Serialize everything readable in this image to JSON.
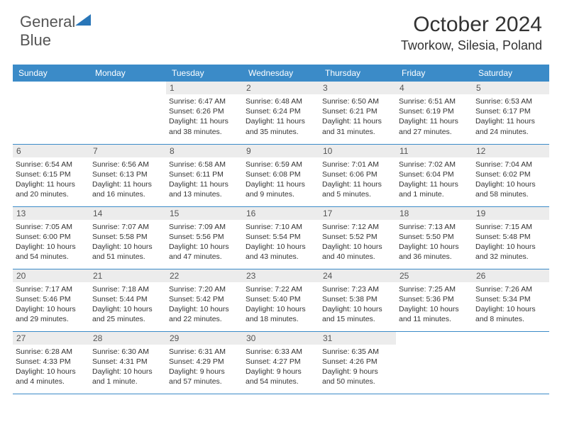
{
  "logo": {
    "text_general": "General",
    "text_blue": "Blue"
  },
  "title": "October 2024",
  "location": "Tworkow, Silesia, Poland",
  "colors": {
    "header_bg": "#3b8bc8",
    "header_text": "#ffffff",
    "daynum_bg": "#ececec",
    "text": "#333333",
    "row_border": "#3b8bc8",
    "logo_blue": "#2976b8"
  },
  "day_names": [
    "Sunday",
    "Monday",
    "Tuesday",
    "Wednesday",
    "Thursday",
    "Friday",
    "Saturday"
  ],
  "weeks": [
    [
      null,
      null,
      {
        "n": "1",
        "sr": "Sunrise: 6:47 AM",
        "ss": "Sunset: 6:26 PM",
        "d1": "Daylight: 11 hours",
        "d2": "and 38 minutes."
      },
      {
        "n": "2",
        "sr": "Sunrise: 6:48 AM",
        "ss": "Sunset: 6:24 PM",
        "d1": "Daylight: 11 hours",
        "d2": "and 35 minutes."
      },
      {
        "n": "3",
        "sr": "Sunrise: 6:50 AM",
        "ss": "Sunset: 6:21 PM",
        "d1": "Daylight: 11 hours",
        "d2": "and 31 minutes."
      },
      {
        "n": "4",
        "sr": "Sunrise: 6:51 AM",
        "ss": "Sunset: 6:19 PM",
        "d1": "Daylight: 11 hours",
        "d2": "and 27 minutes."
      },
      {
        "n": "5",
        "sr": "Sunrise: 6:53 AM",
        "ss": "Sunset: 6:17 PM",
        "d1": "Daylight: 11 hours",
        "d2": "and 24 minutes."
      }
    ],
    [
      {
        "n": "6",
        "sr": "Sunrise: 6:54 AM",
        "ss": "Sunset: 6:15 PM",
        "d1": "Daylight: 11 hours",
        "d2": "and 20 minutes."
      },
      {
        "n": "7",
        "sr": "Sunrise: 6:56 AM",
        "ss": "Sunset: 6:13 PM",
        "d1": "Daylight: 11 hours",
        "d2": "and 16 minutes."
      },
      {
        "n": "8",
        "sr": "Sunrise: 6:58 AM",
        "ss": "Sunset: 6:11 PM",
        "d1": "Daylight: 11 hours",
        "d2": "and 13 minutes."
      },
      {
        "n": "9",
        "sr": "Sunrise: 6:59 AM",
        "ss": "Sunset: 6:08 PM",
        "d1": "Daylight: 11 hours",
        "d2": "and 9 minutes."
      },
      {
        "n": "10",
        "sr": "Sunrise: 7:01 AM",
        "ss": "Sunset: 6:06 PM",
        "d1": "Daylight: 11 hours",
        "d2": "and 5 minutes."
      },
      {
        "n": "11",
        "sr": "Sunrise: 7:02 AM",
        "ss": "Sunset: 6:04 PM",
        "d1": "Daylight: 11 hours",
        "d2": "and 1 minute."
      },
      {
        "n": "12",
        "sr": "Sunrise: 7:04 AM",
        "ss": "Sunset: 6:02 PM",
        "d1": "Daylight: 10 hours",
        "d2": "and 58 minutes."
      }
    ],
    [
      {
        "n": "13",
        "sr": "Sunrise: 7:05 AM",
        "ss": "Sunset: 6:00 PM",
        "d1": "Daylight: 10 hours",
        "d2": "and 54 minutes."
      },
      {
        "n": "14",
        "sr": "Sunrise: 7:07 AM",
        "ss": "Sunset: 5:58 PM",
        "d1": "Daylight: 10 hours",
        "d2": "and 51 minutes."
      },
      {
        "n": "15",
        "sr": "Sunrise: 7:09 AM",
        "ss": "Sunset: 5:56 PM",
        "d1": "Daylight: 10 hours",
        "d2": "and 47 minutes."
      },
      {
        "n": "16",
        "sr": "Sunrise: 7:10 AM",
        "ss": "Sunset: 5:54 PM",
        "d1": "Daylight: 10 hours",
        "d2": "and 43 minutes."
      },
      {
        "n": "17",
        "sr": "Sunrise: 7:12 AM",
        "ss": "Sunset: 5:52 PM",
        "d1": "Daylight: 10 hours",
        "d2": "and 40 minutes."
      },
      {
        "n": "18",
        "sr": "Sunrise: 7:13 AM",
        "ss": "Sunset: 5:50 PM",
        "d1": "Daylight: 10 hours",
        "d2": "and 36 minutes."
      },
      {
        "n": "19",
        "sr": "Sunrise: 7:15 AM",
        "ss": "Sunset: 5:48 PM",
        "d1": "Daylight: 10 hours",
        "d2": "and 32 minutes."
      }
    ],
    [
      {
        "n": "20",
        "sr": "Sunrise: 7:17 AM",
        "ss": "Sunset: 5:46 PM",
        "d1": "Daylight: 10 hours",
        "d2": "and 29 minutes."
      },
      {
        "n": "21",
        "sr": "Sunrise: 7:18 AM",
        "ss": "Sunset: 5:44 PM",
        "d1": "Daylight: 10 hours",
        "d2": "and 25 minutes."
      },
      {
        "n": "22",
        "sr": "Sunrise: 7:20 AM",
        "ss": "Sunset: 5:42 PM",
        "d1": "Daylight: 10 hours",
        "d2": "and 22 minutes."
      },
      {
        "n": "23",
        "sr": "Sunrise: 7:22 AM",
        "ss": "Sunset: 5:40 PM",
        "d1": "Daylight: 10 hours",
        "d2": "and 18 minutes."
      },
      {
        "n": "24",
        "sr": "Sunrise: 7:23 AM",
        "ss": "Sunset: 5:38 PM",
        "d1": "Daylight: 10 hours",
        "d2": "and 15 minutes."
      },
      {
        "n": "25",
        "sr": "Sunrise: 7:25 AM",
        "ss": "Sunset: 5:36 PM",
        "d1": "Daylight: 10 hours",
        "d2": "and 11 minutes."
      },
      {
        "n": "26",
        "sr": "Sunrise: 7:26 AM",
        "ss": "Sunset: 5:34 PM",
        "d1": "Daylight: 10 hours",
        "d2": "and 8 minutes."
      }
    ],
    [
      {
        "n": "27",
        "sr": "Sunrise: 6:28 AM",
        "ss": "Sunset: 4:33 PM",
        "d1": "Daylight: 10 hours",
        "d2": "and 4 minutes."
      },
      {
        "n": "28",
        "sr": "Sunrise: 6:30 AM",
        "ss": "Sunset: 4:31 PM",
        "d1": "Daylight: 10 hours",
        "d2": "and 1 minute."
      },
      {
        "n": "29",
        "sr": "Sunrise: 6:31 AM",
        "ss": "Sunset: 4:29 PM",
        "d1": "Daylight: 9 hours",
        "d2": "and 57 minutes."
      },
      {
        "n": "30",
        "sr": "Sunrise: 6:33 AM",
        "ss": "Sunset: 4:27 PM",
        "d1": "Daylight: 9 hours",
        "d2": "and 54 minutes."
      },
      {
        "n": "31",
        "sr": "Sunrise: 6:35 AM",
        "ss": "Sunset: 4:26 PM",
        "d1": "Daylight: 9 hours",
        "d2": "and 50 minutes."
      },
      null,
      null
    ]
  ]
}
